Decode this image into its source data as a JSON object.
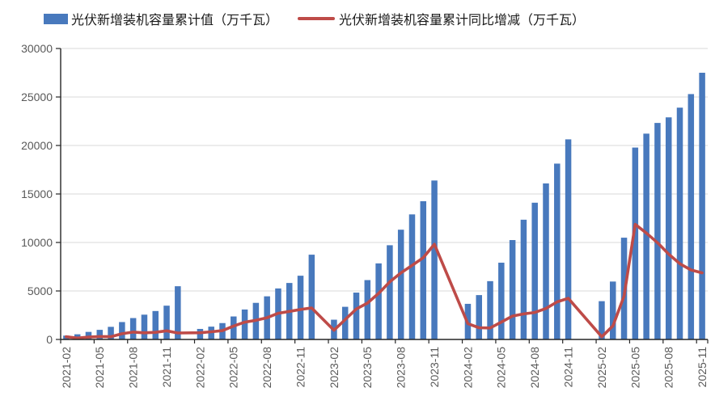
{
  "chart_data": {
    "type": "combo-bar-line",
    "title": "",
    "ylim": [
      0,
      30000
    ],
    "y_ticks": [
      0,
      5000,
      10000,
      15000,
      20000,
      25000,
      30000
    ],
    "x_tick_labels": [
      "2021-02",
      "2021-05",
      "2021-08",
      "2021-11",
      "2022-02",
      "2022-05",
      "2022-08",
      "2022-11",
      "2023-02",
      "2023-05",
      "2023-08",
      "2023-11",
      "2024-02",
      "2024-05",
      "2024-08",
      "2024-11",
      "2025-02",
      "2025-05",
      "2025-08",
      "2025-11"
    ],
    "x_axis": {
      "first_month": "2021-02",
      "last_month": "2025-11"
    },
    "months": [
      "2021-02",
      "2021-03",
      "2021-04",
      "2021-05",
      "2021-06",
      "2021-07",
      "2021-08",
      "2021-09",
      "2021-10",
      "2021-11",
      "2021-12",
      "2022-02",
      "2022-03",
      "2022-04",
      "2022-05",
      "2022-06",
      "2022-07",
      "2022-08",
      "2022-09",
      "2022-10",
      "2022-11",
      "2022-12",
      "2023-02",
      "2023-03",
      "2023-04",
      "2023-05",
      "2023-06",
      "2023-07",
      "2023-08",
      "2023-09",
      "2023-10",
      "2023-11",
      "2024-02",
      "2024-03",
      "2024-04",
      "2024-05",
      "2024-06",
      "2024-07",
      "2024-08",
      "2024-09",
      "2024-10",
      "2024-11",
      "2025-02",
      "2025-03",
      "2025-04",
      "2025-05",
      "2025-06",
      "2025-07",
      "2025-08",
      "2025-09",
      "2025-10",
      "2025-11"
    ],
    "series": [
      {
        "name": "光伏新增装机容量累计值（万千瓦）",
        "type": "bar",
        "color": "#4879BD",
        "values": [
          395,
          533,
          779,
          991,
          1301,
          1794,
          2205,
          2556,
          2931,
          3483,
          5488,
          1086,
          1321,
          1688,
          2371,
          3088,
          3773,
          4447,
          5260,
          5824,
          6571,
          8741,
          2037,
          3366,
          4831,
          6121,
          7842,
          9716,
          11316,
          12894,
          14256,
          16388,
          3672,
          4574,
          6011,
          7915,
          10248,
          12346,
          14099,
          16088,
          18130,
          20632,
          3947,
          5971,
          10493,
          19785,
          21221,
          22325,
          22900,
          23900,
          25300,
          27500
        ]
      },
      {
        "name": "光伏新增装机容量累计同比增减（万千瓦）",
        "type": "line",
        "color": "#BE4B48",
        "values": [
          287,
          138,
          238,
          300,
          286,
          588,
          757,
          686,
          734,
          893,
          668,
          691,
          788,
          909,
          1380,
          1787,
          1979,
          2242,
          2704,
          2893,
          3088,
          3253,
          951,
          2045,
          3143,
          3750,
          4754,
          5943,
          6869,
          7634,
          8432,
          9817,
          1635,
          1208,
          1180,
          1794,
          2406,
          2630,
          2783,
          3194,
          3874,
          4244,
          275,
          1397,
          4482,
          11870,
          10973,
          9979,
          8801,
          7812,
          7170,
          6868
        ]
      }
    ],
    "colors": {
      "gridline": "#D9D9D9",
      "axis": "#262626",
      "tick_label": "#595959",
      "background": "#FFFFFF"
    },
    "legend_position": "top",
    "grid": "horizontal-only"
  }
}
